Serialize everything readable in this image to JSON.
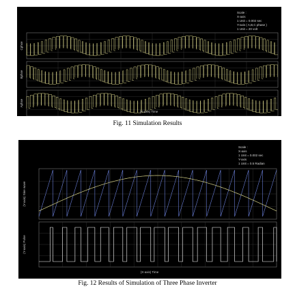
{
  "figures": [
    {
      "caption": "Fig. 11 Simulation Results",
      "scale_text": [
        "Scale :",
        "X-axis",
        "1 Unit = 0.002 sec",
        "Y-axis ( A,B,C phase )",
        "1 Unit = 20 volt"
      ],
      "xaxis_label": "(X-axis) Time",
      "panel_labels": [
        "Cphse",
        "Bphse",
        "Aphse"
      ],
      "chart_data": {
        "type": "line",
        "title": "",
        "xlabel": "(X-axis) Time",
        "ylabel": "",
        "panels": [
          {
            "name": "Cphse",
            "kind": "spwm",
            "carrier_cycles": 68,
            "fundamental_cycles": 4,
            "phase_deg": 240
          },
          {
            "name": "Bphse",
            "kind": "spwm",
            "carrier_cycles": 68,
            "fundamental_cycles": 4,
            "phase_deg": 120
          },
          {
            "name": "Aphse",
            "kind": "spwm",
            "carrier_cycles": 68,
            "fundamental_cycles": 4,
            "phase_deg": 0
          }
        ],
        "grid": true,
        "colors": {
          "waveform": "#d9d58a",
          "grid": "#3a3a3a",
          "border": "#7a7a7a"
        }
      }
    },
    {
      "caption": "Fig. 12 Results of Simulation of Three Phase Inverter",
      "scale_text": [
        "Scale :",
        "X-axis",
        "1 Unit = 0.002 sec",
        "Y-axis",
        "1 Unit = 0.5 Radian"
      ],
      "xaxis_label": "(X-axis) Time",
      "panel_labels": [
        "(Y-axis) Sine wave",
        "(Y-axis) Pulse"
      ],
      "chart_data": {
        "type": "line",
        "title": "",
        "xlabel": "(X-axis) Time",
        "ylabel": "",
        "panels": [
          {
            "name": "(Y-axis) Sine wave",
            "series": [
              {
                "kind": "sawtooth",
                "cycles": 17,
                "color": "#6a7fd8"
              },
              {
                "kind": "sine",
                "cycles": 0.5,
                "color": "#d9d58a"
              }
            ]
          },
          {
            "name": "(Y-axis) Pulse",
            "series": [
              {
                "kind": "pwm",
                "cycles": 17,
                "color": "#ffffff"
              }
            ]
          }
        ],
        "grid": true,
        "colors": {
          "grid": "#3a3a3a",
          "border": "#7a7a7a"
        }
      }
    }
  ]
}
